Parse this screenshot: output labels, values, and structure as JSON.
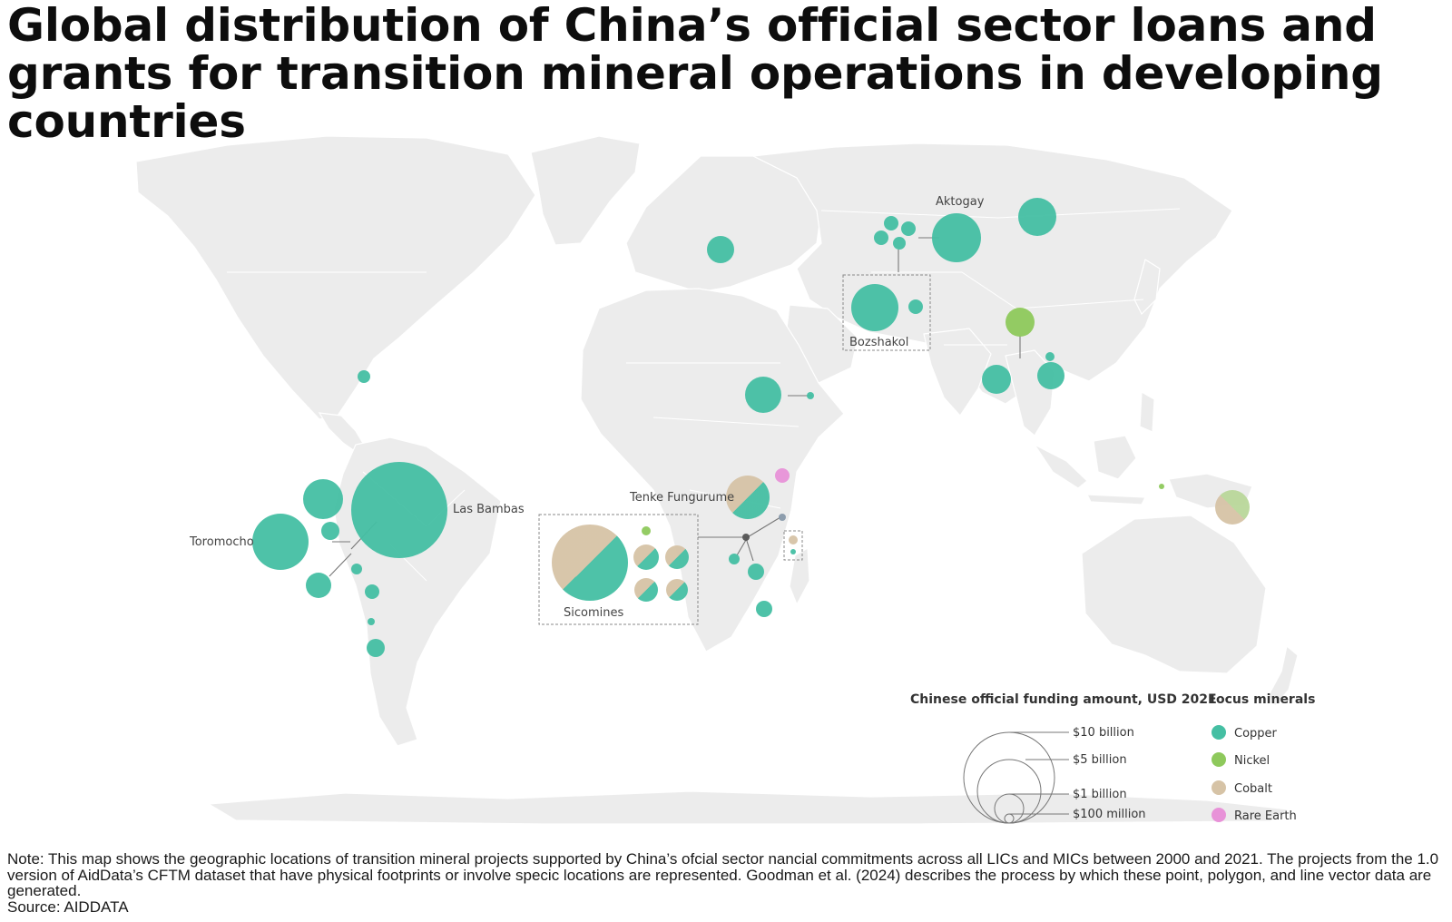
{
  "title": "Global distribution of China’s official sector loans and grants for transition mineral operations in developing countries",
  "colors": {
    "copper": "#45bfa3",
    "nickel": "#8ec95c",
    "cobalt": "#d6c3a6",
    "rare_earth": "#e892d8",
    "land": "#ececec",
    "ocean": "#ffffff"
  },
  "map_labels": {
    "aktogay": "Aktogay",
    "bozshakol": "Bozshakol",
    "las_bambas": "Las Bambas",
    "toromocho": "Toromocho",
    "tenke": "Tenke Fungurume",
    "sicomines": "Sicomines"
  },
  "projects": [
    {
      "label": "Las Bambas",
      "mineral": "copper",
      "amount_usd_billion": 10.0
    },
    {
      "label": "Toromocho",
      "mineral": "copper",
      "amount_usd_billion": 3.6
    },
    {
      "label": "Sicomines",
      "mineral": "cobalt-copper",
      "amount_usd_billion": 6.5
    },
    {
      "label": "Tenke Fungurume",
      "mineral": "cobalt-copper",
      "amount_usd_billion": 2.2
    },
    {
      "label": "Aktogay",
      "mineral": "copper",
      "amount_usd_billion": 2.6
    },
    {
      "label": "Bozshakol",
      "mineral": "copper",
      "amount_usd_billion": 2.5
    }
  ],
  "legend": {
    "size_title": "Chinese official funding amount, USD 2021",
    "sizes": [
      {
        "label": "$10 billion",
        "value_usd_billion": 10
      },
      {
        "label": "$5 billion",
        "value_usd_billion": 5
      },
      {
        "label": "$1 billion",
        "value_usd_billion": 1
      },
      {
        "label": "$100 million",
        "value_usd_billion": 0.1
      }
    ],
    "minerals_title": "Focus minerals",
    "minerals": [
      {
        "label": "Copper",
        "color": "#45bfa3"
      },
      {
        "label": "Nickel",
        "color": "#8ec95c"
      },
      {
        "label": "Cobalt",
        "color": "#d6c3a6"
      },
      {
        "label": "Rare Earth",
        "color": "#e892d8"
      }
    ]
  },
  "note": "Note: This map shows the geographic locations of transition mineral projects supported by China’s ofcial sector nancial commitments across all LICs and MICs between 2000 and 2021. The projects from the 1.0 version of AidData’s CFTM dataset that have physical footprints or involve specic locations are represented. Goodman et al. (2024) describes the process by which these point, polygon, and line vector data are generated.",
  "source": "Source: AIDDATA"
}
